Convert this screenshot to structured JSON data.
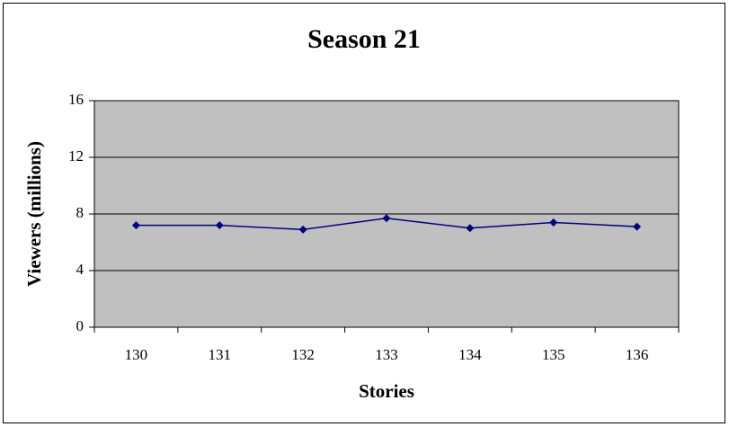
{
  "chart_data": {
    "type": "line",
    "title": "Season 21",
    "x_label": "Stories",
    "y_label": "Viewers (millions)",
    "categories": [
      "130",
      "131",
      "132",
      "133",
      "134",
      "135",
      "136"
    ],
    "series": [
      {
        "name": "Viewers",
        "color": "#000080",
        "values": [
          7.2,
          7.2,
          6.9,
          7.7,
          7.0,
          7.4,
          7.1
        ]
      }
    ],
    "ylim": [
      0,
      16
    ],
    "yticks": [
      0,
      4,
      8,
      12,
      16
    ],
    "grid": true,
    "plot_background": "#c0c0c0"
  }
}
